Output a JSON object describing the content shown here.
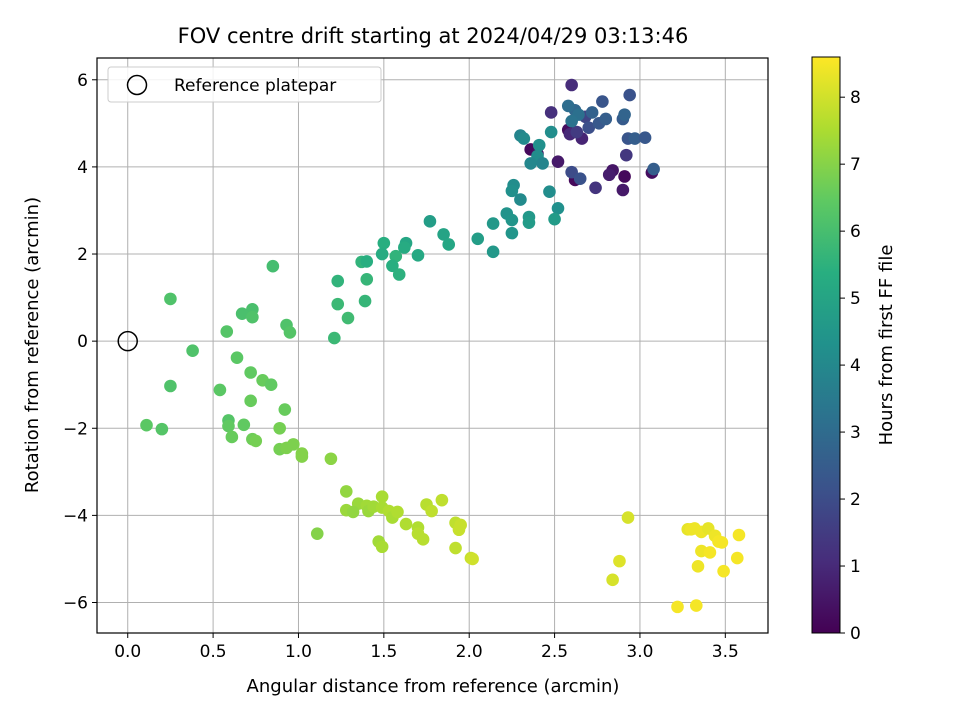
{
  "chart_data": {
    "type": "scatter",
    "title": "FOV centre drift starting at 2024/04/29 03:13:46",
    "xlabel": "Angular distance from reference (arcmin)",
    "ylabel": "Rotation from reference (arcmin)",
    "xlim": [
      -0.18,
      3.75
    ],
    "ylim": [
      -6.7,
      6.5
    ],
    "xticks": [
      0.0,
      0.5,
      1.0,
      1.5,
      2.0,
      2.5,
      3.0,
      3.5
    ],
    "xtick_labels": [
      "0.0",
      "0.5",
      "1.0",
      "1.5",
      "2.0",
      "2.5",
      "3.0",
      "3.5"
    ],
    "yticks": [
      -6,
      -4,
      -2,
      0,
      2,
      4,
      6
    ],
    "ytick_labels": [
      "−6",
      "−4",
      "−2",
      "0",
      "2",
      "4",
      "6"
    ],
    "grid": true,
    "legend": {
      "position": "top-left",
      "entries": [
        "Reference platepar"
      ]
    },
    "reference_point": {
      "x": 0.0,
      "y": 0.0,
      "marker": "open-circle"
    },
    "colorbar": {
      "label": "Hours from first FF file",
      "range": [
        0,
        8.6
      ],
      "ticks": [
        0,
        1,
        2,
        3,
        4,
        5,
        6,
        7,
        8
      ],
      "tick_labels": [
        "0",
        "1",
        "2",
        "3",
        "4",
        "5",
        "6",
        "7",
        "8"
      ],
      "colormap": "viridis"
    },
    "points": [
      {
        "x": 2.36,
        "y": 4.4,
        "c": 0.2
      },
      {
        "x": 2.4,
        "y": 4.3,
        "c": 0.4
      },
      {
        "x": 2.52,
        "y": 4.12,
        "c": 0.6
      },
      {
        "x": 2.58,
        "y": 4.85,
        "c": 0.3
      },
      {
        "x": 2.62,
        "y": 3.7,
        "c": 0.2
      },
      {
        "x": 2.84,
        "y": 3.92,
        "c": 0.5
      },
      {
        "x": 2.82,
        "y": 3.82,
        "c": 0.7
      },
      {
        "x": 2.91,
        "y": 3.78,
        "c": 0.2
      },
      {
        "x": 2.9,
        "y": 3.47,
        "c": 0.6
      },
      {
        "x": 3.07,
        "y": 3.87,
        "c": 0.3
      },
      {
        "x": 2.6,
        "y": 5.88,
        "c": 1.1
      },
      {
        "x": 2.59,
        "y": 4.75,
        "c": 1.0
      },
      {
        "x": 2.66,
        "y": 4.65,
        "c": 0.9
      },
      {
        "x": 2.48,
        "y": 5.25,
        "c": 1.2
      },
      {
        "x": 2.74,
        "y": 3.52,
        "c": 1.3
      },
      {
        "x": 2.92,
        "y": 4.27,
        "c": 1.4
      },
      {
        "x": 2.63,
        "y": 4.8,
        "c": 1.5
      },
      {
        "x": 2.6,
        "y": 3.88,
        "c": 2.0
      },
      {
        "x": 2.65,
        "y": 3.73,
        "c": 2.2
      },
      {
        "x": 2.68,
        "y": 5.15,
        "c": 1.8
      },
      {
        "x": 2.7,
        "y": 4.9,
        "c": 2.1
      },
      {
        "x": 2.76,
        "y": 5.0,
        "c": 2.4
      },
      {
        "x": 2.8,
        "y": 5.1,
        "c": 2.6
      },
      {
        "x": 2.78,
        "y": 5.5,
        "c": 2.3
      },
      {
        "x": 2.72,
        "y": 5.25,
        "c": 2.7
      },
      {
        "x": 2.62,
        "y": 5.3,
        "c": 2.9
      },
      {
        "x": 2.58,
        "y": 5.4,
        "c": 3.1
      },
      {
        "x": 2.64,
        "y": 5.2,
        "c": 3.2
      },
      {
        "x": 2.9,
        "y": 5.1,
        "c": 2.5
      },
      {
        "x": 2.91,
        "y": 5.2,
        "c": 2.8
      },
      {
        "x": 2.94,
        "y": 5.65,
        "c": 2.2
      },
      {
        "x": 2.93,
        "y": 4.65,
        "c": 2.3
      },
      {
        "x": 2.97,
        "y": 4.65,
        "c": 2.6
      },
      {
        "x": 3.03,
        "y": 4.67,
        "c": 2.4
      },
      {
        "x": 3.08,
        "y": 3.95,
        "c": 2.6
      },
      {
        "x": 2.6,
        "y": 5.05,
        "c": 3.3
      },
      {
        "x": 2.48,
        "y": 4.8,
        "c": 4.2
      },
      {
        "x": 2.3,
        "y": 4.72,
        "c": 3.9
      },
      {
        "x": 2.32,
        "y": 4.65,
        "c": 4.1
      },
      {
        "x": 2.41,
        "y": 4.5,
        "c": 4.3
      },
      {
        "x": 2.4,
        "y": 4.25,
        "c": 4.2
      },
      {
        "x": 2.36,
        "y": 4.08,
        "c": 4.0
      },
      {
        "x": 2.43,
        "y": 4.08,
        "c": 3.9
      },
      {
        "x": 2.26,
        "y": 3.58,
        "c": 4.2
      },
      {
        "x": 2.25,
        "y": 3.45,
        "c": 4.3
      },
      {
        "x": 2.3,
        "y": 3.25,
        "c": 4.1
      },
      {
        "x": 2.47,
        "y": 3.43,
        "c": 4.2
      },
      {
        "x": 2.52,
        "y": 3.05,
        "c": 4.3
      },
      {
        "x": 2.22,
        "y": 2.93,
        "c": 4.4
      },
      {
        "x": 2.25,
        "y": 2.78,
        "c": 4.5
      },
      {
        "x": 2.35,
        "y": 2.85,
        "c": 4.6
      },
      {
        "x": 2.35,
        "y": 2.72,
        "c": 4.7
      },
      {
        "x": 2.14,
        "y": 2.7,
        "c": 4.6
      },
      {
        "x": 2.25,
        "y": 2.48,
        "c": 4.5
      },
      {
        "x": 2.5,
        "y": 2.8,
        "c": 4.7
      },
      {
        "x": 2.14,
        "y": 2.05,
        "c": 4.6
      },
      {
        "x": 2.05,
        "y": 2.35,
        "c": 4.8
      },
      {
        "x": 1.77,
        "y": 2.75,
        "c": 4.8
      },
      {
        "x": 1.85,
        "y": 2.45,
        "c": 5.0
      },
      {
        "x": 1.88,
        "y": 2.22,
        "c": 5.1
      },
      {
        "x": 1.7,
        "y": 1.97,
        "c": 5.2
      },
      {
        "x": 1.63,
        "y": 2.25,
        "c": 5.1
      },
      {
        "x": 1.62,
        "y": 2.15,
        "c": 5.3
      },
      {
        "x": 1.5,
        "y": 2.25,
        "c": 5.4
      },
      {
        "x": 1.49,
        "y": 2.0,
        "c": 5.3
      },
      {
        "x": 1.57,
        "y": 1.95,
        "c": 5.6
      },
      {
        "x": 1.55,
        "y": 1.73,
        "c": 5.4
      },
      {
        "x": 1.59,
        "y": 1.53,
        "c": 5.5
      },
      {
        "x": 1.37,
        "y": 1.82,
        "c": 5.6
      },
      {
        "x": 1.4,
        "y": 1.83,
        "c": 5.4
      },
      {
        "x": 1.4,
        "y": 1.42,
        "c": 5.7
      },
      {
        "x": 1.23,
        "y": 1.38,
        "c": 5.6
      },
      {
        "x": 1.39,
        "y": 0.92,
        "c": 5.7
      },
      {
        "x": 1.23,
        "y": 0.85,
        "c": 5.8
      },
      {
        "x": 1.29,
        "y": 0.53,
        "c": 5.9
      },
      {
        "x": 1.21,
        "y": 0.07,
        "c": 5.8
      },
      {
        "x": 0.85,
        "y": 1.72,
        "c": 6.0
      },
      {
        "x": 0.93,
        "y": 0.37,
        "c": 6.2
      },
      {
        "x": 0.95,
        "y": 0.2,
        "c": 6.3
      },
      {
        "x": 0.73,
        "y": 0.73,
        "c": 6.1
      },
      {
        "x": 0.67,
        "y": 0.63,
        "c": 6.1
      },
      {
        "x": 0.73,
        "y": 0.55,
        "c": 6.2
      },
      {
        "x": 0.58,
        "y": 0.22,
        "c": 6.3
      },
      {
        "x": 0.25,
        "y": 0.97,
        "c": 6.2
      },
      {
        "x": 0.38,
        "y": -0.22,
        "c": 6.2
      },
      {
        "x": 0.64,
        "y": -0.38,
        "c": 6.4
      },
      {
        "x": 0.72,
        "y": -0.72,
        "c": 6.5
      },
      {
        "x": 0.79,
        "y": -0.9,
        "c": 6.6
      },
      {
        "x": 0.84,
        "y": -1.0,
        "c": 6.5
      },
      {
        "x": 0.54,
        "y": -1.12,
        "c": 6.4
      },
      {
        "x": 0.25,
        "y": -1.03,
        "c": 6.2
      },
      {
        "x": 0.72,
        "y": -1.37,
        "c": 6.6
      },
      {
        "x": 0.92,
        "y": -1.57,
        "c": 6.6
      },
      {
        "x": 0.59,
        "y": -1.82,
        "c": 6.3
      },
      {
        "x": 0.59,
        "y": -1.95,
        "c": 6.5
      },
      {
        "x": 0.68,
        "y": -1.92,
        "c": 6.5
      },
      {
        "x": 0.11,
        "y": -1.93,
        "c": 6.4
      },
      {
        "x": 0.2,
        "y": -2.02,
        "c": 6.3
      },
      {
        "x": 0.61,
        "y": -2.2,
        "c": 6.6
      },
      {
        "x": 0.73,
        "y": -2.25,
        "c": 6.7
      },
      {
        "x": 0.75,
        "y": -2.29,
        "c": 6.8
      },
      {
        "x": 0.89,
        "y": -2.0,
        "c": 6.8
      },
      {
        "x": 0.97,
        "y": -2.37,
        "c": 6.9
      },
      {
        "x": 0.89,
        "y": -2.48,
        "c": 6.8
      },
      {
        "x": 0.93,
        "y": -2.45,
        "c": 6.9
      },
      {
        "x": 1.02,
        "y": -2.58,
        "c": 7.0
      },
      {
        "x": 1.02,
        "y": -2.65,
        "c": 7.0
      },
      {
        "x": 1.19,
        "y": -2.7,
        "c": 7.1
      },
      {
        "x": 1.11,
        "y": -4.42,
        "c": 7.0
      },
      {
        "x": 1.28,
        "y": -3.45,
        "c": 7.2
      },
      {
        "x": 1.35,
        "y": -3.73,
        "c": 7.3
      },
      {
        "x": 1.28,
        "y": -3.88,
        "c": 7.3
      },
      {
        "x": 1.32,
        "y": -3.92,
        "c": 7.2
      },
      {
        "x": 1.4,
        "y": -3.78,
        "c": 7.4
      },
      {
        "x": 1.41,
        "y": -3.9,
        "c": 7.3
      },
      {
        "x": 1.44,
        "y": -3.8,
        "c": 7.4
      },
      {
        "x": 1.49,
        "y": -3.57,
        "c": 7.5
      },
      {
        "x": 1.49,
        "y": -3.82,
        "c": 7.5
      },
      {
        "x": 1.53,
        "y": -3.9,
        "c": 7.6
      },
      {
        "x": 1.55,
        "y": -4.05,
        "c": 7.5
      },
      {
        "x": 1.58,
        "y": -3.92,
        "c": 7.6
      },
      {
        "x": 1.47,
        "y": -4.6,
        "c": 7.4
      },
      {
        "x": 1.49,
        "y": -4.72,
        "c": 7.5
      },
      {
        "x": 1.63,
        "y": -4.2,
        "c": 7.6
      },
      {
        "x": 1.7,
        "y": -4.28,
        "c": 7.6
      },
      {
        "x": 1.7,
        "y": -4.42,
        "c": 7.7
      },
      {
        "x": 1.73,
        "y": -4.55,
        "c": 7.7
      },
      {
        "x": 1.75,
        "y": -3.75,
        "c": 7.7
      },
      {
        "x": 1.78,
        "y": -3.9,
        "c": 7.8
      },
      {
        "x": 1.84,
        "y": -3.65,
        "c": 7.8
      },
      {
        "x": 1.92,
        "y": -4.17,
        "c": 7.8
      },
      {
        "x": 1.94,
        "y": -4.33,
        "c": 7.9
      },
      {
        "x": 1.95,
        "y": -4.22,
        "c": 7.9
      },
      {
        "x": 1.92,
        "y": -4.75,
        "c": 7.8
      },
      {
        "x": 2.01,
        "y": -4.98,
        "c": 7.9
      },
      {
        "x": 2.02,
        "y": -5.0,
        "c": 8.0
      },
      {
        "x": 2.93,
        "y": -4.05,
        "c": 8.1
      },
      {
        "x": 2.88,
        "y": -5.05,
        "c": 8.2
      },
      {
        "x": 2.84,
        "y": -5.48,
        "c": 8.1
      },
      {
        "x": 3.22,
        "y": -6.1,
        "c": 8.5
      },
      {
        "x": 3.33,
        "y": -6.07,
        "c": 8.5
      },
      {
        "x": 3.28,
        "y": -4.32,
        "c": 8.3
      },
      {
        "x": 3.3,
        "y": -4.32,
        "c": 8.4
      },
      {
        "x": 3.32,
        "y": -4.3,
        "c": 8.4
      },
      {
        "x": 3.36,
        "y": -4.38,
        "c": 8.4
      },
      {
        "x": 3.4,
        "y": -4.3,
        "c": 8.3
      },
      {
        "x": 3.44,
        "y": -4.47,
        "c": 8.4
      },
      {
        "x": 3.46,
        "y": -4.6,
        "c": 8.5
      },
      {
        "x": 3.48,
        "y": -4.62,
        "c": 8.5
      },
      {
        "x": 3.36,
        "y": -4.82,
        "c": 8.4
      },
      {
        "x": 3.41,
        "y": -4.85,
        "c": 8.5
      },
      {
        "x": 3.34,
        "y": -5.17,
        "c": 8.4
      },
      {
        "x": 3.49,
        "y": -5.28,
        "c": 8.5
      },
      {
        "x": 3.57,
        "y": -4.98,
        "c": 8.5
      },
      {
        "x": 3.58,
        "y": -4.45,
        "c": 8.5
      }
    ]
  }
}
